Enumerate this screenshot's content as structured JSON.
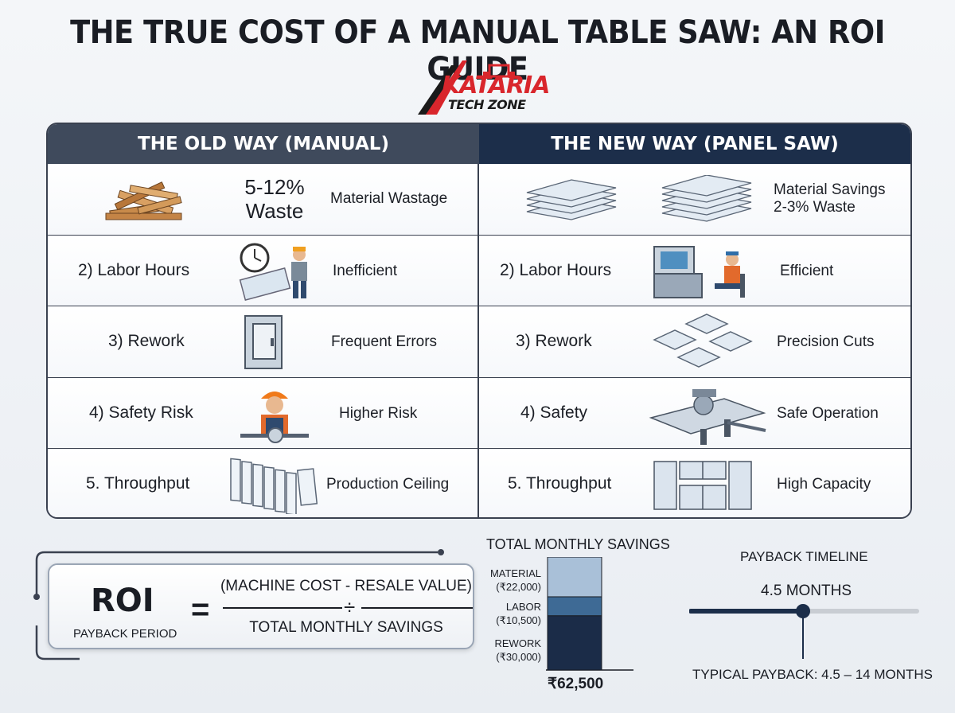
{
  "title": "THE TRUE COST OF A MANUAL TABLE SAW: AN ROI GUIDE",
  "logo": {
    "word": "KATARIA",
    "sub": "TECH ZONE"
  },
  "colors": {
    "header_old": "#3f4a5c",
    "header_new": "#1c2e4a",
    "accent_red": "#d9262c",
    "bar_material": "#a9c0d8",
    "bar_labor": "#3e6a95",
    "bar_rework": "#1b2c48"
  },
  "old": {
    "header": "THE OLD WAY (MANUAL)",
    "rows": [
      {
        "label": "",
        "big": "5-12%\nWaste",
        "desc": "Material Wastage",
        "icon": "wood-pile-icon"
      },
      {
        "label": "2) Labor Hours",
        "desc": "Inefficient",
        "icon": "tired-worker-clock-icon"
      },
      {
        "label": "3) Rework",
        "desc": "Frequent Errors",
        "icon": "panel-frame-icon"
      },
      {
        "label": "4) Safety Risk",
        "desc": "Higher Risk",
        "icon": "worker-saw-icon"
      },
      {
        "label": "5. Throughput",
        "desc": "Production Ceiling",
        "icon": "panel-stack-icon"
      }
    ]
  },
  "new": {
    "header": "THE NEW WAY (PANEL SAW)",
    "rows": [
      {
        "label": "",
        "desc": "Material Savings\n 2-3% Waste",
        "icon": "sheet-stack-icon"
      },
      {
        "label": "2) Labor Hours",
        "desc": "Efficient",
        "icon": "operator-console-icon"
      },
      {
        "label": "3) Rework",
        "desc": "Precision Cuts",
        "icon": "precision-tiles-icon"
      },
      {
        "label": "4) Safety",
        "desc": "Safe Operation",
        "icon": "panel-saw-machine-icon"
      },
      {
        "label": "5. Throughput",
        "desc": "High Capacity",
        "icon": "cabinets-icon"
      }
    ]
  },
  "roi": {
    "word": "ROI",
    "sub": "PAYBACK PERIOD",
    "equals": "=",
    "numerator": "(MACHINE COST - RESALE VALUE)",
    "divide": "÷",
    "denominator": "TOTAL MONTHLY SAVINGS"
  },
  "savings": {
    "title": "TOTAL MONTHLY SAVINGS",
    "items": [
      {
        "name": "MATERIAL",
        "value": "(₹22,000)",
        "amount": 22000
      },
      {
        "name": "LABOR",
        "value": "(₹10,500)",
        "amount": 10500
      },
      {
        "name": "REWORK",
        "value": "(₹30,000)",
        "amount": 30000
      }
    ],
    "total": "₹62,500"
  },
  "payback": {
    "title": "PAYBACK TIMELINE",
    "value": "4.5 MONTHS",
    "position_fraction": 0.5,
    "typical": "TYPICAL PAYBACK: 4.5 – 14 MONTHS"
  }
}
